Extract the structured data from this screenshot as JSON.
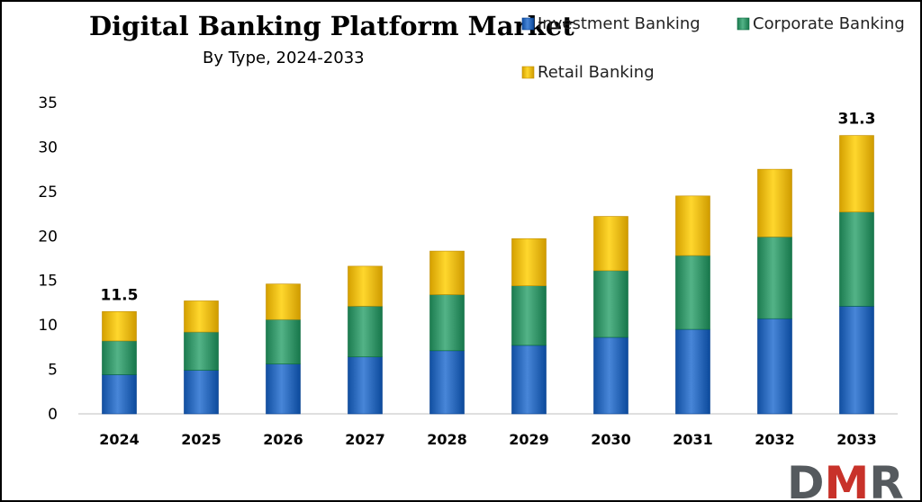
{
  "chart_data": {
    "type": "bar",
    "stacked": true,
    "title": "Digital Banking Platform Market",
    "subtitle": "By Type, 2024-2033",
    "categories": [
      "2024",
      "2025",
      "2026",
      "2027",
      "2028",
      "2029",
      "2030",
      "2031",
      "2032",
      "2033"
    ],
    "series": [
      {
        "name": "Investment Banking",
        "color": "#2F6DBF",
        "values": [
          4.4,
          4.9,
          5.6,
          6.4,
          7.1,
          7.7,
          8.6,
          9.5,
          10.7,
          12.1
        ]
      },
      {
        "name": "Corporate Banking",
        "color": "#3A9A6E",
        "values": [
          3.8,
          4.3,
          5.0,
          5.7,
          6.3,
          6.7,
          7.5,
          8.3,
          9.2,
          10.6
        ]
      },
      {
        "name": "Retail Banking",
        "color": "#F2BE14",
        "values": [
          3.3,
          3.5,
          4.0,
          4.5,
          4.9,
          5.3,
          6.1,
          6.7,
          7.6,
          8.6
        ]
      }
    ],
    "totals_labels": [
      {
        "category": "2024",
        "text": "11.5"
      },
      {
        "category": "2033",
        "text": "31.3"
      }
    ],
    "ylim": [
      0,
      35
    ],
    "yticks": [
      "0",
      "5",
      "10",
      "15",
      "20",
      "25",
      "30",
      "35"
    ],
    "ytick_values": [
      0,
      5,
      10,
      15,
      20,
      25,
      30,
      35
    ],
    "xlabel": "",
    "ylabel": "",
    "legend_position": "top-right",
    "grid": false
  },
  "logo": {
    "text": "DMR",
    "colors": {
      "D": "#555a5e",
      "M": "#c8322a",
      "R": "#555a5e"
    }
  }
}
